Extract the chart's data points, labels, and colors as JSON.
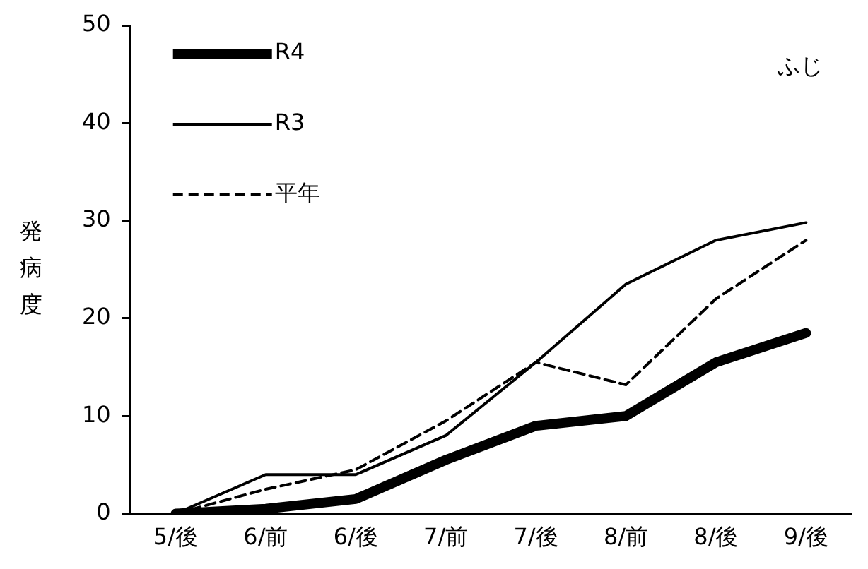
{
  "chart_data": {
    "type": "line",
    "ylabel": "発病度",
    "annotations": [
      "ふじ"
    ],
    "categories": [
      "5/後",
      "6/前",
      "6/後",
      "7/前",
      "7/後",
      "8/前",
      "8/後",
      "9/後"
    ],
    "series": [
      {
        "name": "R4",
        "color": "#000000",
        "values": [
          0,
          0.5,
          1.5,
          5.5,
          9,
          10,
          15.5,
          18.5
        ]
      },
      {
        "name": "R3",
        "color": "#000000",
        "values": [
          0,
          4,
          4,
          8,
          15.5,
          23.5,
          28,
          29.8
        ]
      },
      {
        "name": "平年",
        "color": "#000000",
        "line_style": "dashed",
        "values": [
          0,
          2.5,
          4.5,
          9.5,
          15.5,
          13.2,
          22,
          28
        ]
      }
    ],
    "ylim": [
      0,
      50
    ],
    "yticks": [
      0,
      10,
      20,
      30,
      40,
      50
    ],
    "grid": false,
    "legend": "top left",
    "marker": "none"
  }
}
